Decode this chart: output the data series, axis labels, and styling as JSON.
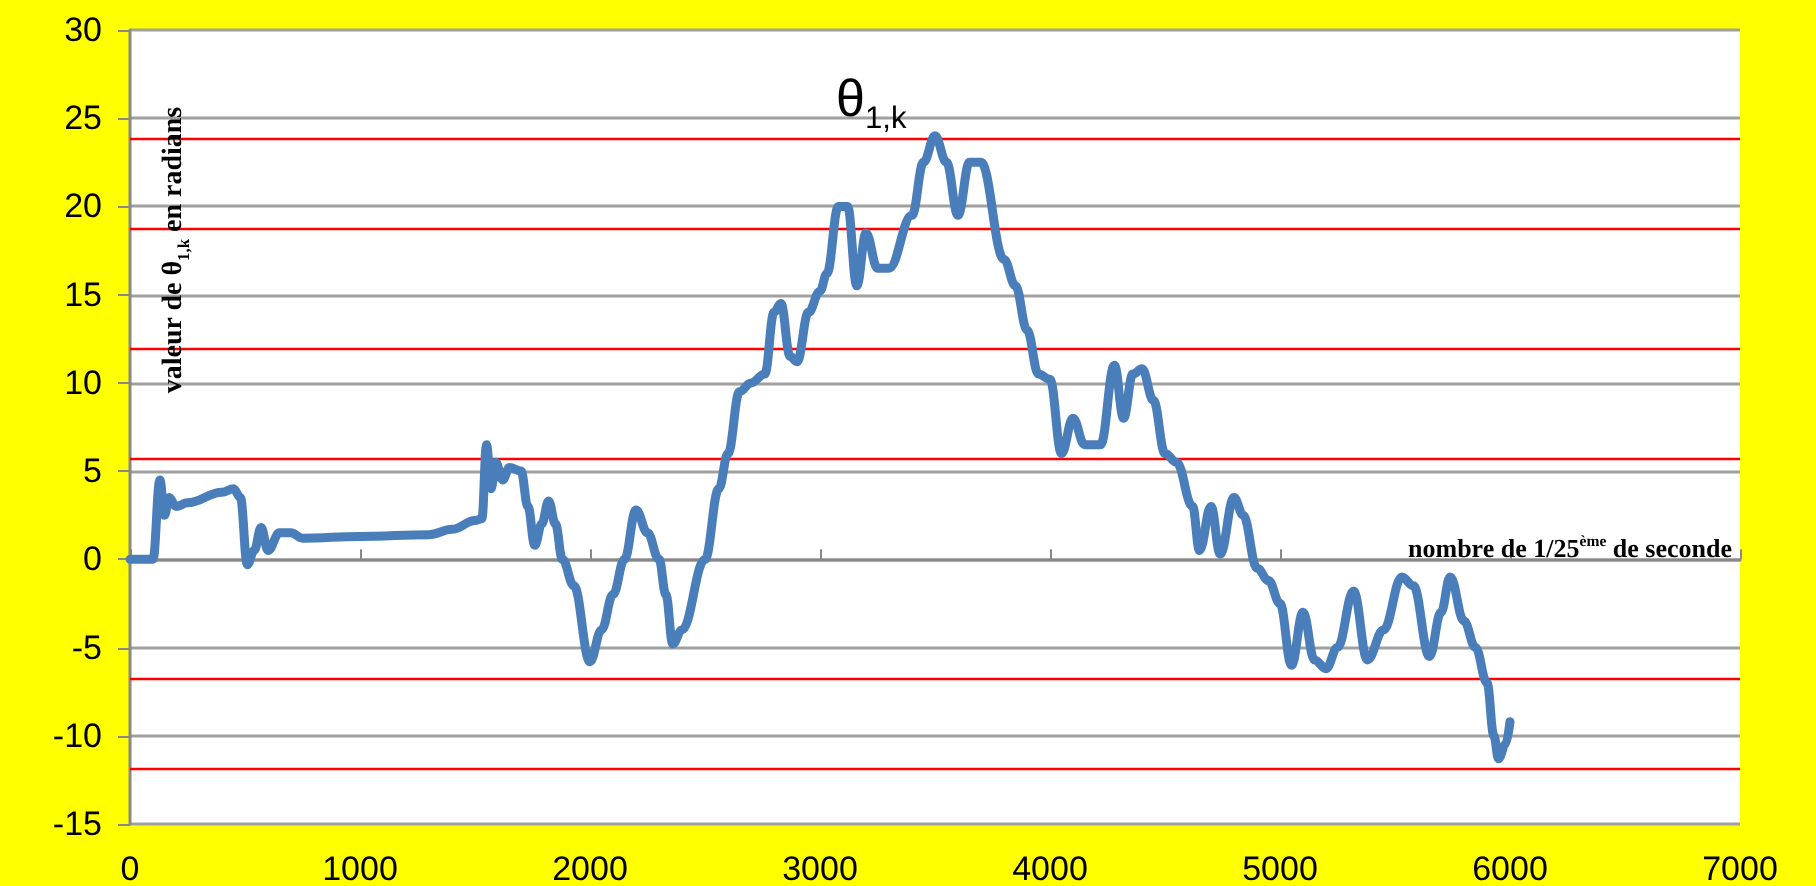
{
  "chart_data": {
    "type": "line",
    "xlabel": "nombre de 1/25$^{ème}$ de seconde",
    "ylabel": "valeur de θ$_{1,k}$ en radians",
    "annotations": [
      "θ$_{1,k}$"
    ],
    "xlim": [
      0,
      7000
    ],
    "xticks": [
      0,
      1000,
      2000,
      3000,
      4000,
      5000,
      6000,
      7000
    ],
    "ylim": [
      -15,
      30
    ],
    "yticks": [
      -15,
      -10,
      -5,
      0,
      5,
      10,
      15,
      20,
      25,
      30
    ],
    "grid": "y",
    "marker": "none",
    "line_style": "solid",
    "ref_lines": [
      {
        "axis": "y",
        "value": 23.9,
        "label": null,
        "color": "#ff0000"
      },
      {
        "axis": "y",
        "value": 18.7,
        "label": null,
        "color": "#ff0000"
      },
      {
        "axis": "y",
        "value": 12,
        "label": null,
        "color": "#ff0000"
      },
      {
        "axis": "y",
        "value": 5.7,
        "label": null,
        "color": "#ff0000"
      },
      {
        "axis": "y",
        "value": -6.7,
        "label": null,
        "color": "#ff0000"
      },
      {
        "axis": "y",
        "value": -11.8,
        "label": null,
        "color": "#ff0000"
      }
    ],
    "series": [
      {
        "color": "#4a7ebb",
        "x": [
          0,
          100,
          130,
          150,
          170,
          200,
          250,
          400,
          450,
          480,
          510,
          540,
          570,
          600,
          650,
          700,
          750,
          1000,
          1300,
          1400,
          1500,
          1530,
          1550,
          1570,
          1590,
          1620,
          1650,
          1700,
          1730,
          1760,
          1790,
          1820,
          1850,
          1880,
          1930,
          2000,
          2050,
          2100,
          2150,
          2200,
          2250,
          2300,
          2330,
          2360,
          2400,
          2500,
          2560,
          2600,
          2650,
          2700,
          2760,
          2800,
          2830,
          2870,
          2900,
          2950,
          3000,
          3030,
          3080,
          3120,
          3160,
          3200,
          3250,
          3300,
          3400,
          3450,
          3500,
          3550,
          3600,
          3650,
          3700,
          3800,
          3850,
          3900,
          3950,
          4000,
          4050,
          4100,
          4150,
          4220,
          4280,
          4320,
          4360,
          4400,
          4450,
          4500,
          4550,
          4620,
          4650,
          4700,
          4740,
          4800,
          4840,
          4900,
          4950,
          5000,
          5050,
          5100,
          5150,
          5200,
          5250,
          5320,
          5380,
          5450,
          5530,
          5580,
          5650,
          5700,
          5740,
          5800,
          5850,
          5900,
          5930,
          5950,
          5980,
          6000
        ],
        "values": [
          0,
          0,
          4.5,
          2.5,
          3.5,
          3,
          3.2,
          3.8,
          4,
          3.5,
          -0.3,
          0.5,
          1.8,
          0.5,
          1.5,
          1.5,
          1.2,
          1.3,
          1.4,
          1.7,
          2.2,
          2.3,
          6.5,
          4,
          5.5,
          4.5,
          5.2,
          5,
          3,
          0.8,
          2,
          3.3,
          2,
          0,
          -1.5,
          -5.8,
          -4,
          -2,
          0,
          2.8,
          1.5,
          0,
          -2,
          -4.8,
          -4,
          0,
          4,
          6,
          9.5,
          10,
          10.5,
          14,
          14.5,
          11.5,
          11.2,
          14,
          15.2,
          16.2,
          20,
          20,
          15.5,
          18.5,
          16.5,
          16.5,
          19.5,
          22.5,
          24,
          22.5,
          19.5,
          22.5,
          22.5,
          17,
          15.5,
          13,
          10.5,
          10.2,
          6,
          8,
          6.5,
          6.5,
          11,
          8,
          10.5,
          10.8,
          9,
          6,
          5.5,
          3,
          0.5,
          3,
          0.3,
          3.5,
          2.5,
          -0.5,
          -1.2,
          -2.5,
          -6,
          -3,
          -5.7,
          -6.2,
          -5,
          -1.8,
          -5.7,
          -4,
          -1,
          -1.5,
          -5.5,
          -3,
          -1,
          -3.5,
          -5,
          -7,
          -10,
          -11.3,
          -10.5,
          -9.2
        ]
      }
    ]
  }
}
